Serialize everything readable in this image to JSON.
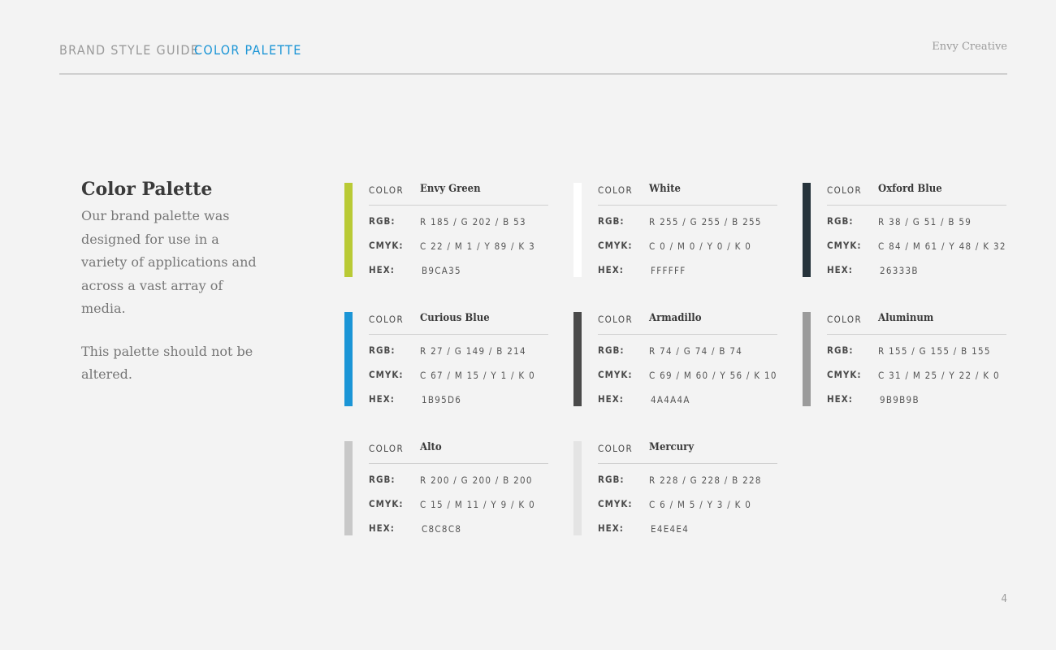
{
  "header": {
    "guide_label": "BRAND STYLE GUIDE",
    "section_label": "COLOR PALETTE",
    "company": "Envy Creative"
  },
  "intro": {
    "title": "Color Palette",
    "paragraph1": "Our brand palette was designed for use in a variety of applications and across a vast array of media.",
    "paragraph2": "This palette should not be altered."
  },
  "labels": {
    "color": "COLOR",
    "rgb": "RGB:",
    "cmyk": "CMYK:",
    "hex": "HEX:"
  },
  "colors": [
    {
      "name": "Envy Green",
      "rgb": "R 185 / G 202 / B 53",
      "cmyk": "C 22 / M 1 / Y 89 / K 3",
      "hex": "B9CA35",
      "swatch": "#b9ca35"
    },
    {
      "name": "White",
      "rgb": "R 255 / G 255 / B 255",
      "cmyk": "C 0 / M 0 / Y 0 / K 0",
      "hex": "FFFFFF",
      "swatch": "#ffffff"
    },
    {
      "name": "Oxford Blue",
      "rgb": "R 38 / G 51 / B 59",
      "cmyk": "C 84 / M 61 / Y 48 / K 32",
      "hex": "26333B",
      "swatch": "#26333b"
    },
    {
      "name": "Curious Blue",
      "rgb": "R 27 / G 149 / B 214",
      "cmyk": "C 67 / M 15 / Y 1 / K 0",
      "hex": "1B95D6",
      "swatch": "#1b95d6"
    },
    {
      "name": "Armadillo",
      "rgb": "R 74 / G 74 / B 74",
      "cmyk": "C 69 / M 60 / Y 56 / K 10",
      "hex": "4A4A4A",
      "swatch": "#4a4a4a"
    },
    {
      "name": "Aluminum",
      "rgb": "R 155 / G 155 / B 155",
      "cmyk": "C 31 / M 25 / Y 22 / K 0",
      "hex": "9B9B9B",
      "swatch": "#9b9b9b"
    },
    {
      "name": "Alto",
      "rgb": "R 200 / G 200 / B 200",
      "cmyk": "C 15 / M 11 / Y 9 / K 0",
      "hex": "C8C8C8",
      "swatch": "#c8c8c8"
    },
    {
      "name": "Mercury",
      "rgb": "R 228 / G 228 / B 228",
      "cmyk": "C 6 / M 5 / Y 3 / K 0",
      "hex": "E4E4E4",
      "swatch": "#e4e4e4"
    }
  ],
  "page_number": "4"
}
